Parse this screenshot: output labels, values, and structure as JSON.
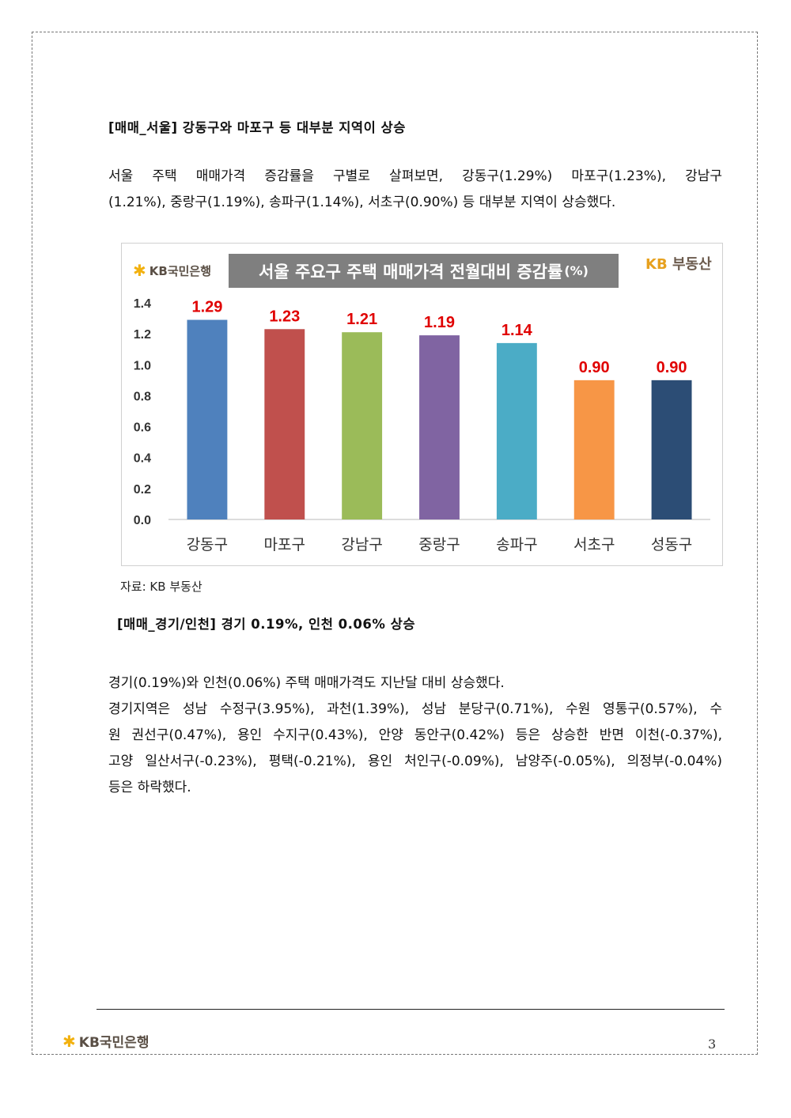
{
  "section1": {
    "heading": "[매매_서울] 강동구와 마포구 등 대부분 지역이 상승",
    "lines": [
      "서울 주택 매매가격 증감률을 구별로 살펴보면, 강동구(1.29%) 마포구(1.23%), 강남구",
      "(1.21%), 중랑구(1.19%), 송파구(1.14%), 서초구(0.90%) 등 대부분 지역이 상승했다."
    ]
  },
  "chart_header": {
    "logo_text": "KB국민은행",
    "title": "서울 주요구 주택 매매가격 전월대비 증감률",
    "title_unit": "(%)",
    "brand_kb": "KB",
    "brand_name": "부동산"
  },
  "chart_data": {
    "type": "bar",
    "title": "서울 주요구 주택 매매가격 전월대비 증감률(%)",
    "categories": [
      "강동구",
      "마포구",
      "강남구",
      "중랑구",
      "송파구",
      "서초구",
      "성동구"
    ],
    "values": [
      1.29,
      1.23,
      1.21,
      1.19,
      1.14,
      0.9,
      0.9
    ],
    "value_labels": [
      "1.29",
      "1.23",
      "1.21",
      "1.19",
      "1.14",
      "0.90",
      "0.90"
    ],
    "colors": [
      "#4f81bd",
      "#c0504d",
      "#9bbb59",
      "#8064a2",
      "#4bacc6",
      "#f79646",
      "#2c4d75"
    ],
    "label_color": "#e00000",
    "ylim": [
      0,
      1.4
    ],
    "yticks": [
      "0.0",
      "0.2",
      "0.4",
      "0.6",
      "0.8",
      "1.0",
      "1.2",
      "1.4"
    ],
    "xlabel": "",
    "ylabel": "",
    "grid": false
  },
  "source": "자료: KB 부동산",
  "section2": {
    "heading": "[매매_경기/인천] 경기 0.19%, 인천 0.06% 상승",
    "first_line": "경기(0.19%)와 인천(0.06%) 주택 매매가격도 지난달 대비 상승했다.",
    "lines": [
      "경기지역은 성남 수정구(3.95%), 과천(1.39%), 성남 분당구(0.71%), 수원 영통구(0.57%), 수",
      "원 권선구(0.47%), 용인 수지구(0.43%), 안양 동안구(0.42%) 등은 상승한 반면 이천(-0.37%),",
      "고양 일산서구(-0.23%), 평택(-0.21%), 용인 처인구(-0.09%), 남양주(-0.05%), 의정부(-0.04%)"
    ],
    "last_line": "등은 하락했다."
  },
  "footer": {
    "logo_text": "KB국민은행",
    "page_number": "3"
  }
}
